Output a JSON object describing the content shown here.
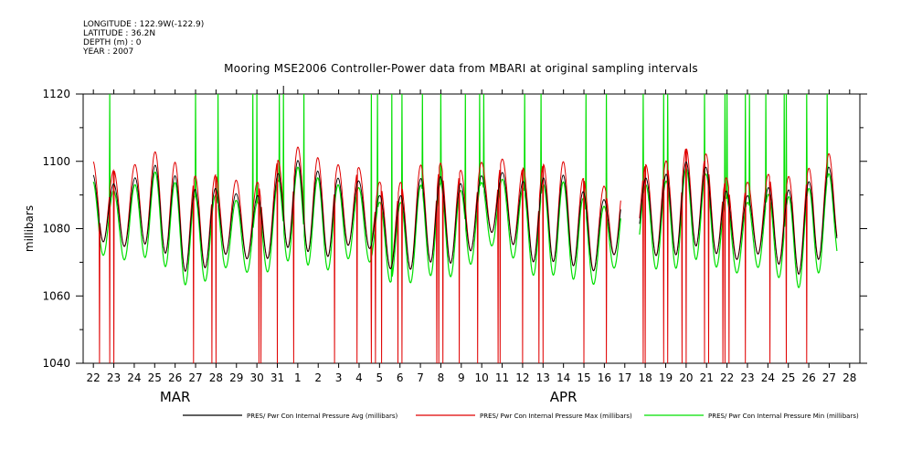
{
  "meta": {
    "longitude": "LONGITUDE : 122.9W(-122.9)",
    "latitude": "LATITUDE : 36.2N",
    "depth": "DEPTH (m) : 0",
    "year": "YEAR : 2007"
  },
  "colors": {
    "avg": "#000000",
    "max": "#e00000",
    "min": "#00e000"
  },
  "chart_data": {
    "type": "line",
    "title": "Mooring MSE2006 Controller-Power data from MBARI at original sampling intervals",
    "xlabel": "",
    "ylabel": "millibars",
    "ylim": [
      1040,
      1120
    ],
    "yticks": [
      1040,
      1060,
      1080,
      1100,
      1120
    ],
    "x_start": "2007-03-21T12:00",
    "x_end": "2007-04-28T12:00",
    "xtick_labels": [
      "22",
      "23",
      "24",
      "25",
      "26",
      "27",
      "28",
      "29",
      "30",
      "31",
      "1",
      "2",
      "3",
      "4",
      "5",
      "6",
      "7",
      "8",
      "9",
      "10",
      "11",
      "12",
      "13",
      "14",
      "15",
      "16",
      "17",
      "18",
      "19",
      "20",
      "21",
      "22",
      "23",
      "24",
      "25",
      "26",
      "27",
      "28"
    ],
    "month_labels": [
      "MAR",
      "APR"
    ],
    "legend_position": "bottom",
    "series": [
      {
        "name": "PRES/ Pwr Con Internal Pressure Avg (millibars)",
        "color": "#000000",
        "amplitude": 11,
        "offset": 0
      },
      {
        "name": "PRES/ Pwr Con Internal Pressure Max (millibars)",
        "color": "#e00000",
        "amplitude": 13,
        "offset": 2
      },
      {
        "name": "PRES/ Pwr Con Internal Pressure Min (millibars)",
        "color": "#00e000",
        "amplitude": 12,
        "offset": -3
      }
    ],
    "gap": {
      "start_day": 26.3,
      "end_day": 27.2
    },
    "diurnal_mean": 1083,
    "max_spike_days": [
      1.3,
      5.5,
      6.6,
      8.3,
      8.5,
      9.6,
      9.8,
      10.8,
      14.1,
      14.4,
      15.1,
      15.6,
      16.6,
      17.5,
      18.7,
      19.4,
      19.6,
      21.6,
      22.4,
      24.6,
      25.6,
      26.5,
      27.4,
      28.4,
      28.6,
      30.4,
      31.4,
      31.5,
      32.4,
      32.6,
      33.4,
      34.3,
      34.4,
      35.4,
      36.4
    ],
    "min_spike_days": [
      0.8,
      1.3,
      1.5,
      5.4,
      6.3,
      6.5,
      8.6,
      8.7,
      9.5,
      10.3,
      12.3,
      13.4,
      14.1,
      14.3,
      14.6,
      15.4,
      15.6,
      17.3,
      17.4,
      17.6,
      18.4,
      19.3,
      20.3,
      20.4,
      21.5,
      22.3,
      22.5,
      24.5,
      25.6,
      27.4,
      27.5,
      28.4,
      28.6,
      29.3,
      29.5,
      30.4,
      30.6,
      31.3,
      31.4,
      31.6,
      32.4,
      33.6,
      34.4,
      35.4
    ]
  }
}
